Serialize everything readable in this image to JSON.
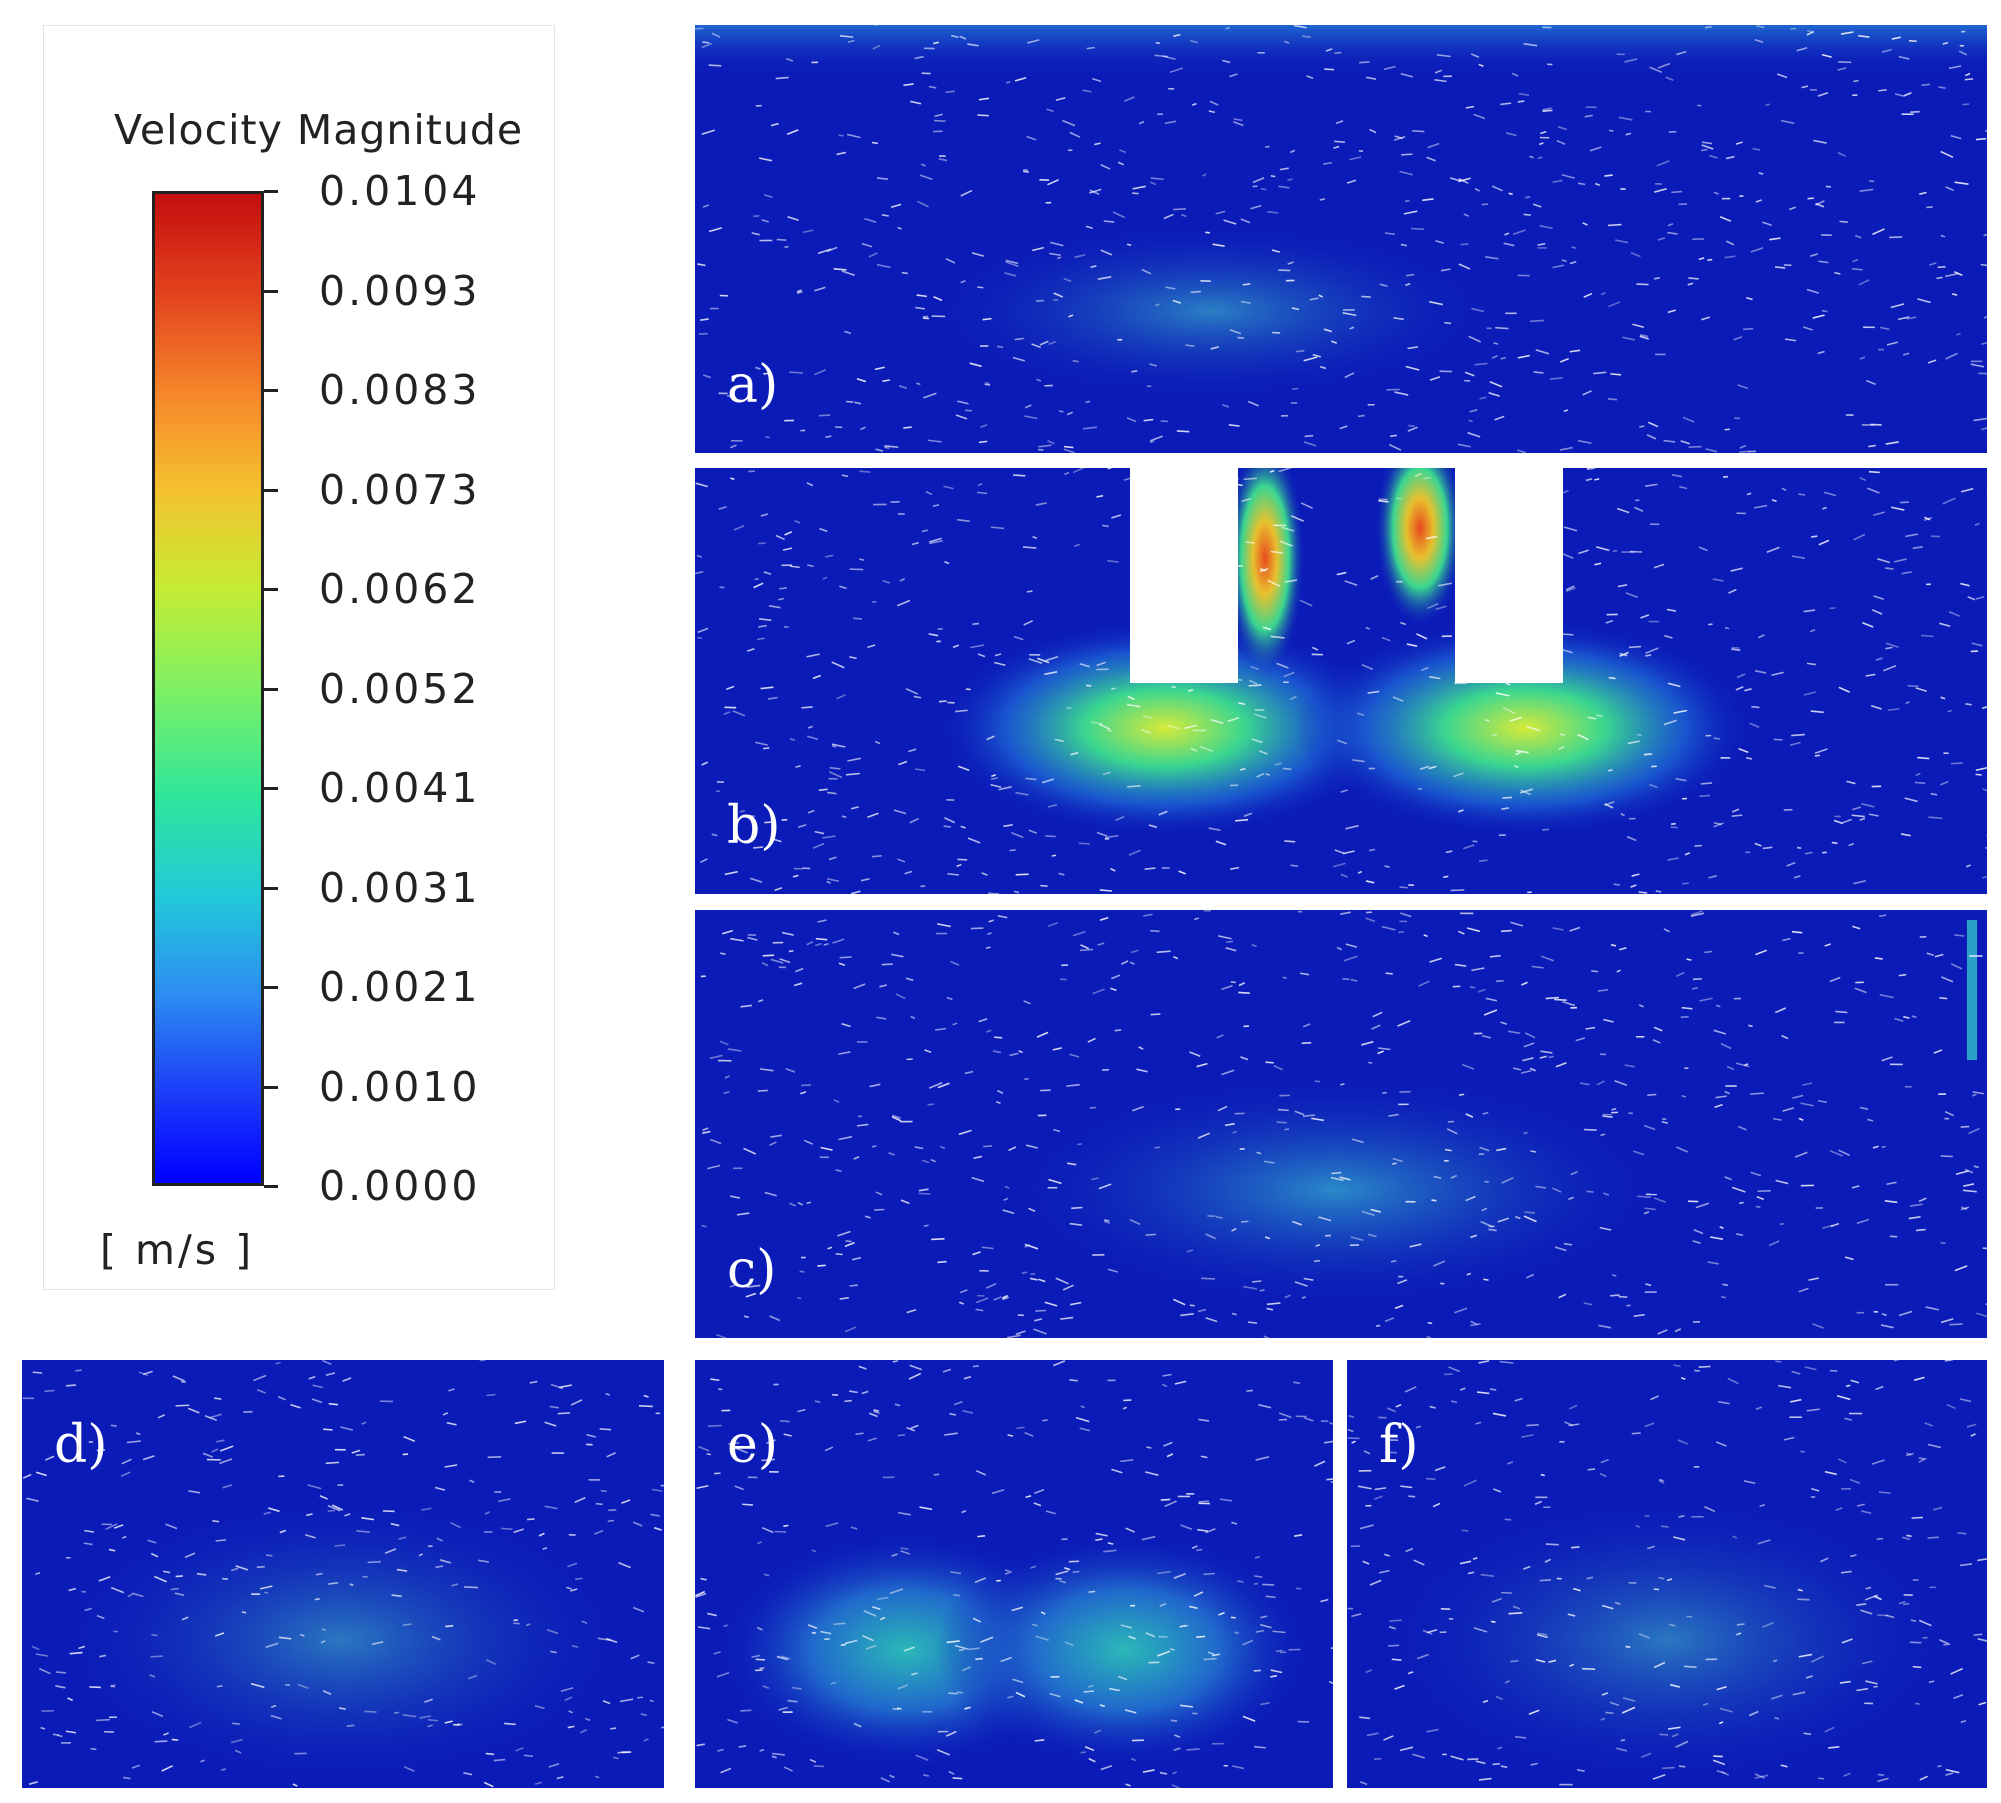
{
  "legend": {
    "title": "Velocity Magnitude",
    "unit": "[ m/s ]",
    "ticks": [
      "0.0104",
      "0.0093",
      "0.0083",
      "0.0073",
      "0.0062",
      "0.0052",
      "0.0041",
      "0.0031",
      "0.0021",
      "0.0010",
      "0.0000"
    ],
    "colormap": [
      "#0000ff",
      "#2c8cf0",
      "#22c9d8",
      "#2ee69b",
      "#7ef062",
      "#c4ec34",
      "#f4c22e",
      "#f6852a",
      "#e2421e",
      "#c40e0e"
    ]
  },
  "panels": {
    "a": {
      "label": "a)"
    },
    "b": {
      "label": "b)"
    },
    "c": {
      "label": "c)"
    },
    "d": {
      "label": "d)"
    },
    "e": {
      "label": "e)"
    },
    "f": {
      "label": "f)"
    }
  },
  "colors": {
    "background_flow": "#0b1bb8",
    "vector": "#ffffff",
    "blockage": "#ffffff"
  }
}
